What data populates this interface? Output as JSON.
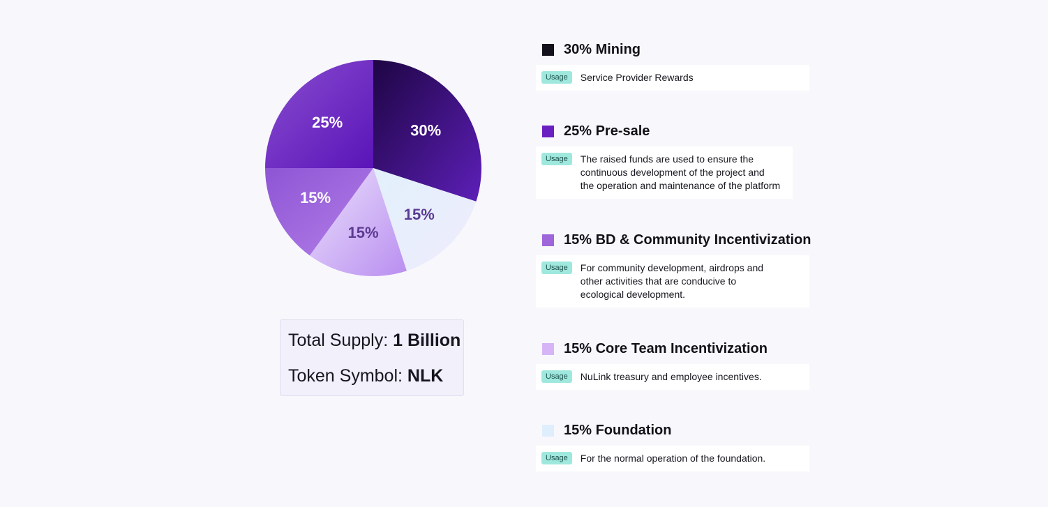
{
  "chart_data": {
    "type": "pie",
    "slices": [
      {
        "label": "30%",
        "value": 30,
        "name": "Mining",
        "color": "#3d1080",
        "gradient": [
          "#1e0544",
          "#5d1fb8"
        ],
        "label_color": "#ffffff"
      },
      {
        "label": "15%",
        "value": 15,
        "name": "Foundation",
        "color": "#e6eefc",
        "gradient": [
          "#e2f0fc",
          "#efecfc"
        ],
        "label_color": "#5b3a93"
      },
      {
        "label": "15%",
        "value": 15,
        "name": "Core Team Incentivization",
        "color": "#c9a6f2",
        "gradient": [
          "#ebe1fc",
          "#b98ef0"
        ],
        "label_color": "#5b3a93"
      },
      {
        "label": "15%",
        "value": 15,
        "name": "BD & Community Incentivization",
        "color": "#9b66d8",
        "gradient": [
          "#8e55d4",
          "#b27ee8"
        ],
        "label_color": "#ffffff"
      },
      {
        "label": "25%",
        "value": 25,
        "name": "Pre-sale",
        "color": "#6a22c2",
        "gradient": [
          "#8a4ed0",
          "#5a14b8"
        ],
        "label_color": "#ffffff"
      }
    ]
  },
  "supply": {
    "total_label": "Total Supply: ",
    "total_value": "1 Billion",
    "symbol_label": "Token Symbol: ",
    "symbol_value": "NLK"
  },
  "legend": [
    {
      "title": "30% Mining",
      "color": "#14101c",
      "badge": "Usage",
      "text": [
        "Service Provider Rewards"
      ]
    },
    {
      "title": "25% Pre-sale",
      "color": "#6a1fc0",
      "badge": "Usage",
      "text": [
        "The raised funds are used to ensure the",
        "continuous development of the project and",
        "the operation and maintenance of the platform"
      ]
    },
    {
      "title": "15% BD & Community Incentivization",
      "color": "#9e66d9",
      "badge": "Usage",
      "text": [
        "For community development, airdrops and",
        "other activities that are conducive to",
        "ecological development."
      ]
    },
    {
      "title": "15% Core Team Incentivization",
      "color": "#d6b4f6",
      "badge": "Usage",
      "text": [
        "NuLink treasury and employee incentives."
      ]
    },
    {
      "title": "15% Foundation",
      "color": "#dfeefc",
      "badge": "Usage",
      "text": [
        "For the normal operation of the foundation."
      ]
    }
  ]
}
